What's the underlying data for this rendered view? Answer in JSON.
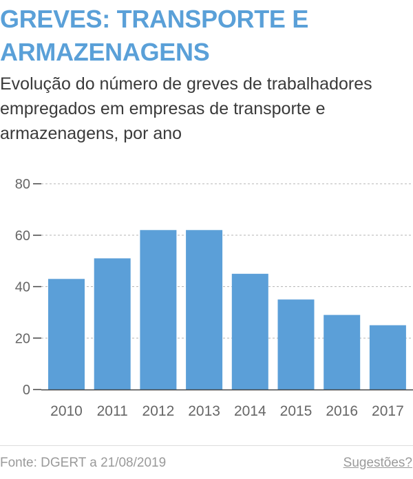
{
  "header": {
    "title": "GREVES: TRANSPORTE E ARMAZENAGENS",
    "subtitle": "Evolução do número de greves de trabalhadores empregados em empresas de transporte e armazenagens, por ano"
  },
  "footer": {
    "source": "Fonte: DGERT a 21/08/2019",
    "suggestions_link": "Sugestões?"
  },
  "colors": {
    "title": "#5aa0d8",
    "bar": "#5b9fd8",
    "grid": "#b5b5b5",
    "axis_text": "#666666"
  },
  "chart_data": {
    "type": "bar",
    "title": "GREVES: TRANSPORTE E ARMAZENAGENS",
    "subtitle": "Evolução do número de greves de trabalhadores empregados em empresas de transporte e armazenagens, por ano",
    "categories": [
      "2010",
      "2011",
      "2012",
      "2013",
      "2014",
      "2015",
      "2016",
      "2017"
    ],
    "values": [
      43,
      51,
      62,
      62,
      45,
      35,
      29,
      25
    ],
    "ylim": [
      0,
      80
    ],
    "yticks": [
      0,
      20,
      40,
      60,
      80
    ],
    "xlabel": "",
    "ylabel": "",
    "grid": true,
    "legend": "none"
  }
}
